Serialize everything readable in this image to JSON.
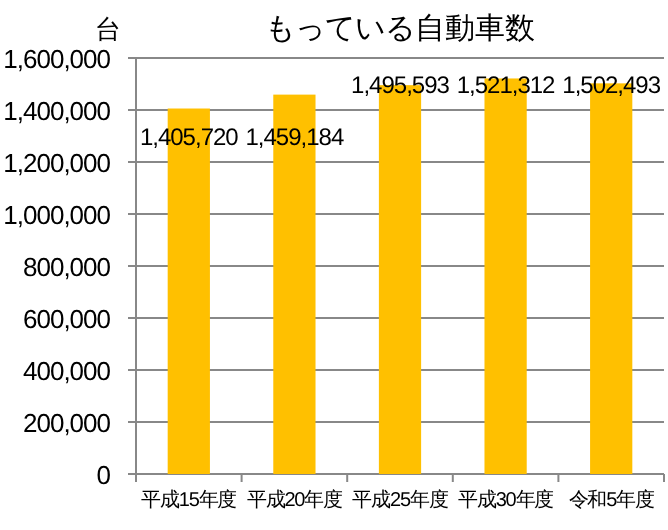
{
  "chart_data": {
    "type": "bar",
    "title": "もっている自動車数",
    "ylabel": "台",
    "categories": [
      "平成15年度",
      "平成20年度",
      "平成25年度",
      "平成30年度",
      "令和5年度"
    ],
    "values": [
      1405720,
      1459184,
      1495593,
      1521312,
      1502493
    ],
    "color": "#ffc000",
    "ylim": [
      0,
      1600000
    ],
    "yticks": [
      {
        "value": 0,
        "label": "0"
      },
      {
        "value": 200000,
        "label": "200,000"
      },
      {
        "value": 400000,
        "label": "400,000"
      },
      {
        "value": 600000,
        "label": "600,000"
      },
      {
        "value": 800000,
        "label": "800,000"
      },
      {
        "value": 1000000,
        "label": "1,000,000"
      },
      {
        "value": 1200000,
        "label": "1,200,000"
      },
      {
        "value": 1400000,
        "label": "1,400,000"
      },
      {
        "value": 1600000,
        "label": "1,600,000"
      }
    ],
    "value_labels": [
      "1,405,720",
      "1,459,184",
      "1,495,593",
      "1,521,312",
      "1,502,493"
    ],
    "grid": "y"
  }
}
